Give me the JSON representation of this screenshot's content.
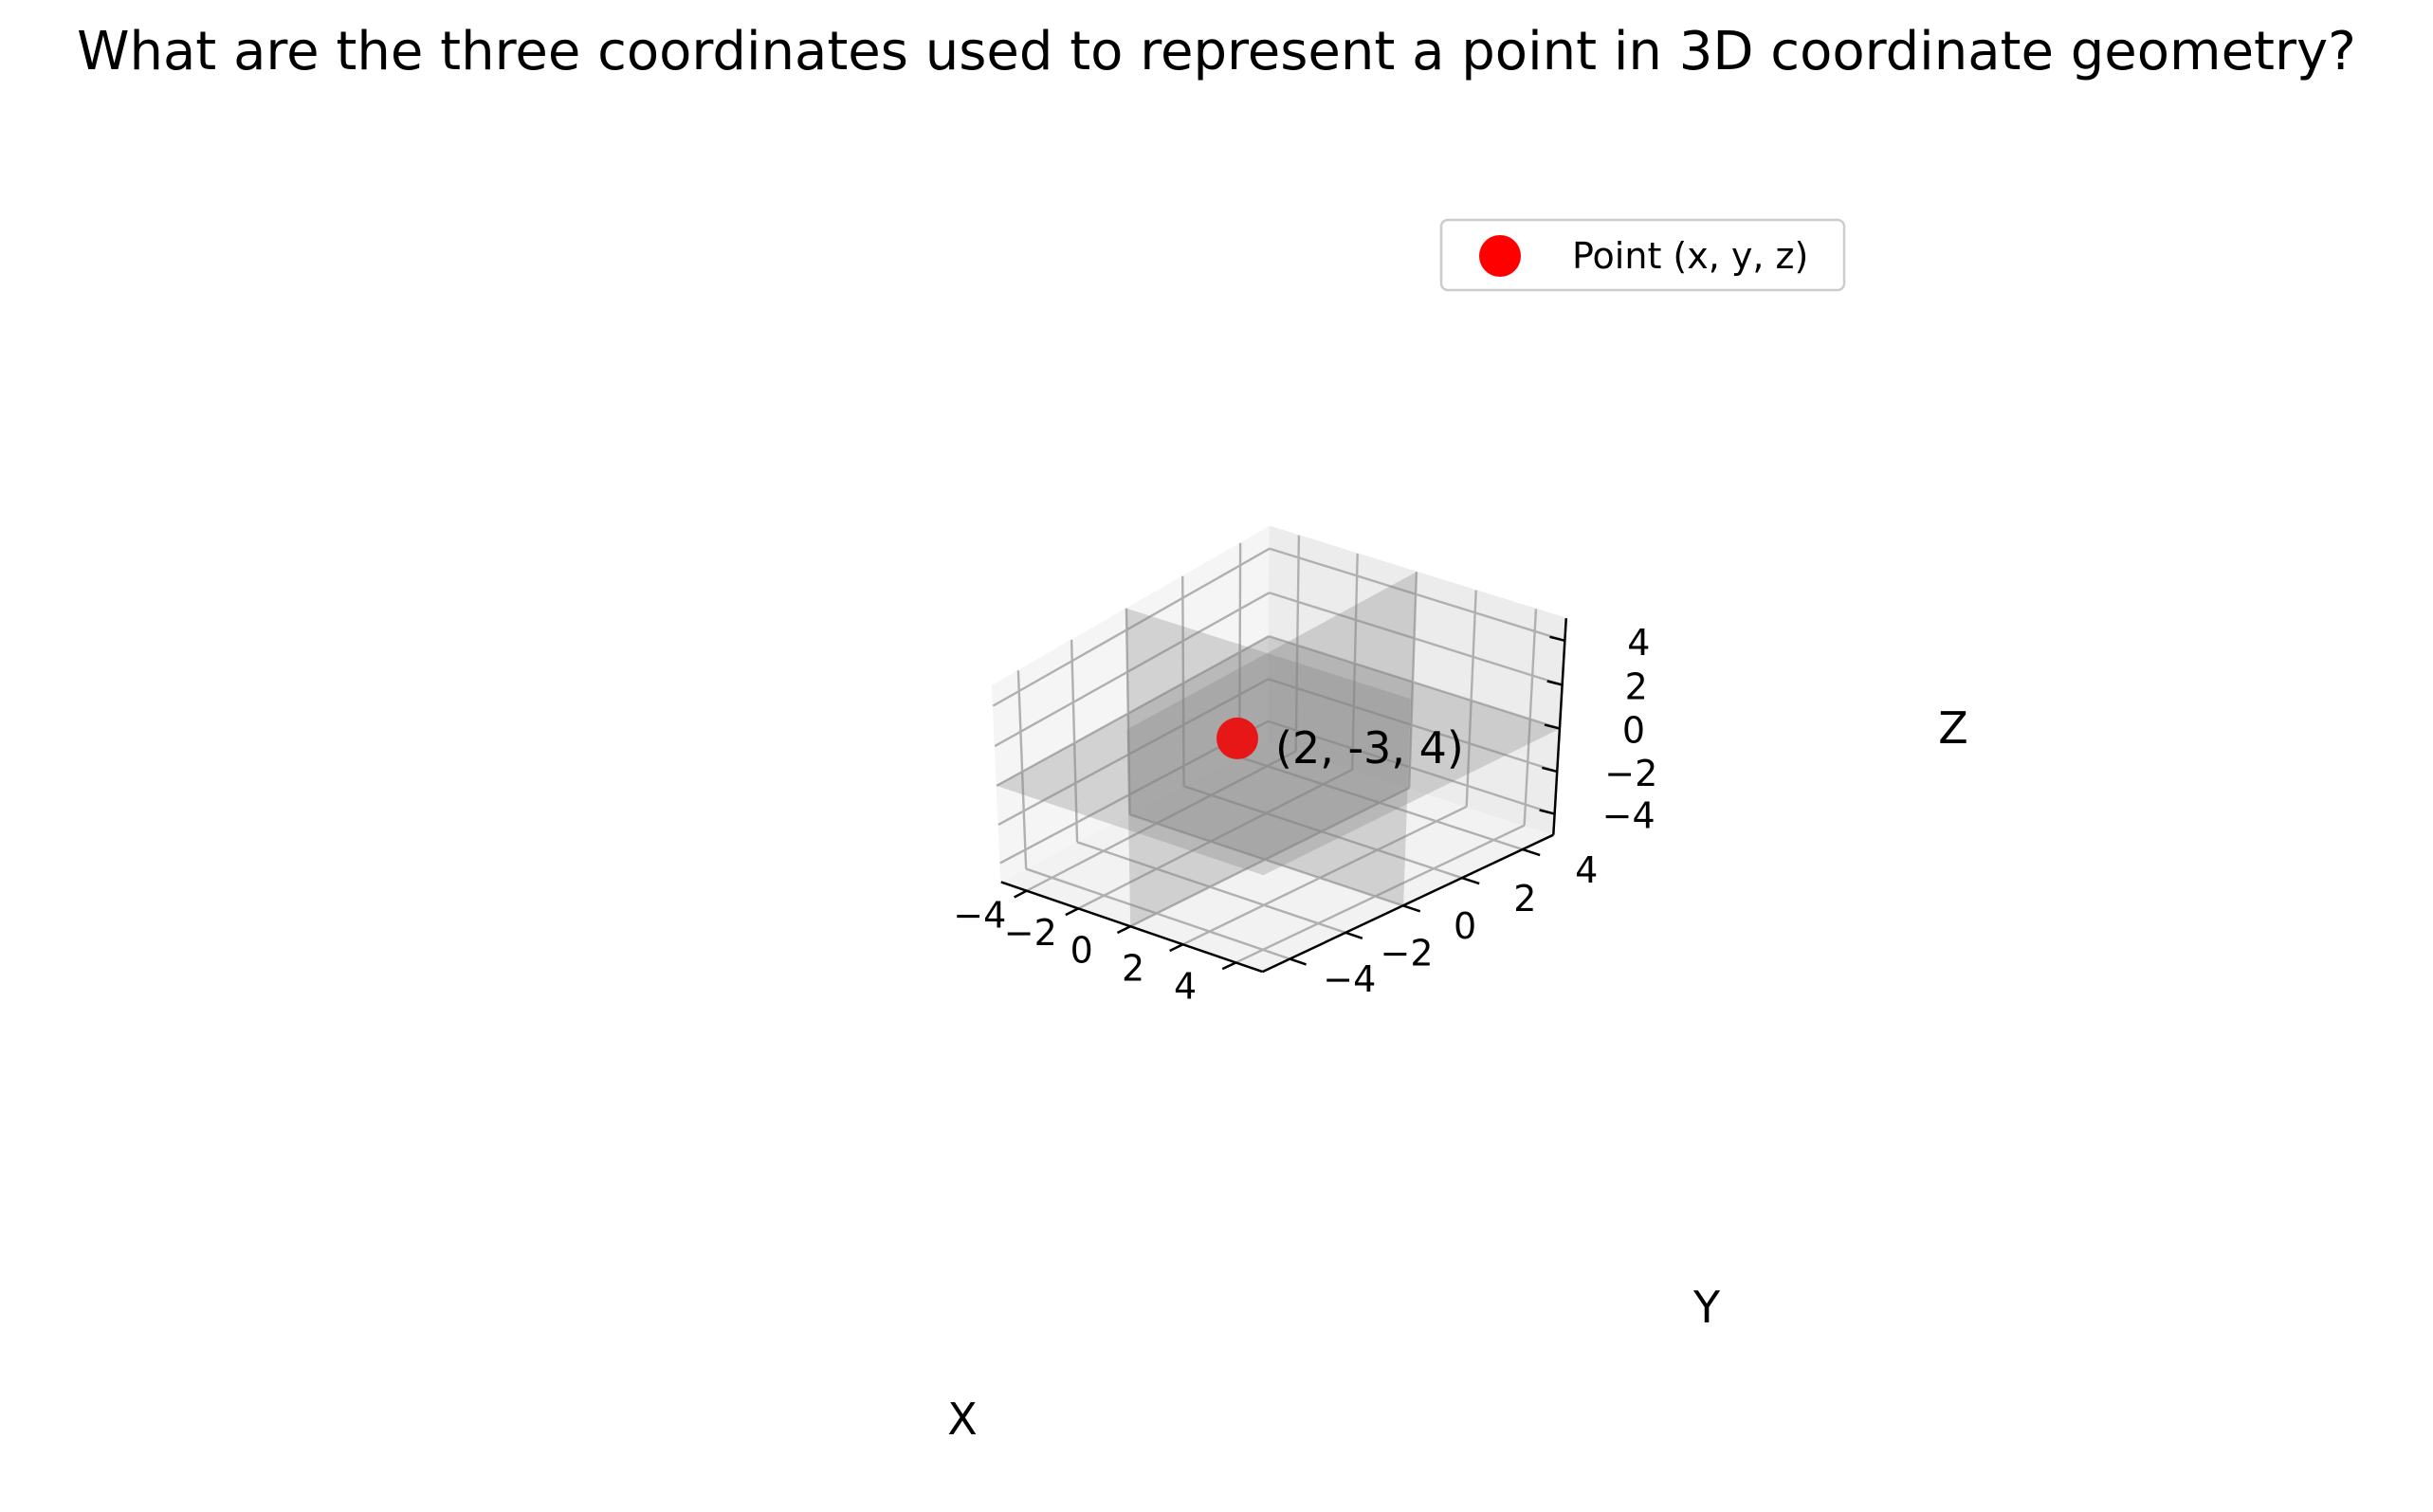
{
  "chart_data": {
    "type": "scatter",
    "title": "What are the three coordinates used to represent a point in 3D coordinate geometry?",
    "xlabel": "X",
    "ylabel": "Y",
    "zlabel": "Z",
    "xlim": [
      -5,
      5
    ],
    "ylim": [
      -5,
      5
    ],
    "zlim": [
      -5,
      5
    ],
    "x_ticks": [
      "−4",
      "−2",
      "0",
      "2",
      "4"
    ],
    "y_ticks": [
      "−4",
      "−2",
      "0",
      "2",
      "4"
    ],
    "z_ticks": [
      "−4",
      "−2",
      "0",
      "2",
      "4"
    ],
    "grid": true,
    "legend_position": "top-right",
    "series": [
      {
        "name": "Point (x, y, z)",
        "x": [
          2
        ],
        "y": [
          -3
        ],
        "z": [
          4
        ],
        "color": "#ff0000"
      }
    ],
    "planes": [
      "x=0",
      "y=0",
      "z=0"
    ],
    "plane_color": "#808080",
    "annotations": [
      {
        "text": "(2, -3, 4)"
      }
    ]
  }
}
